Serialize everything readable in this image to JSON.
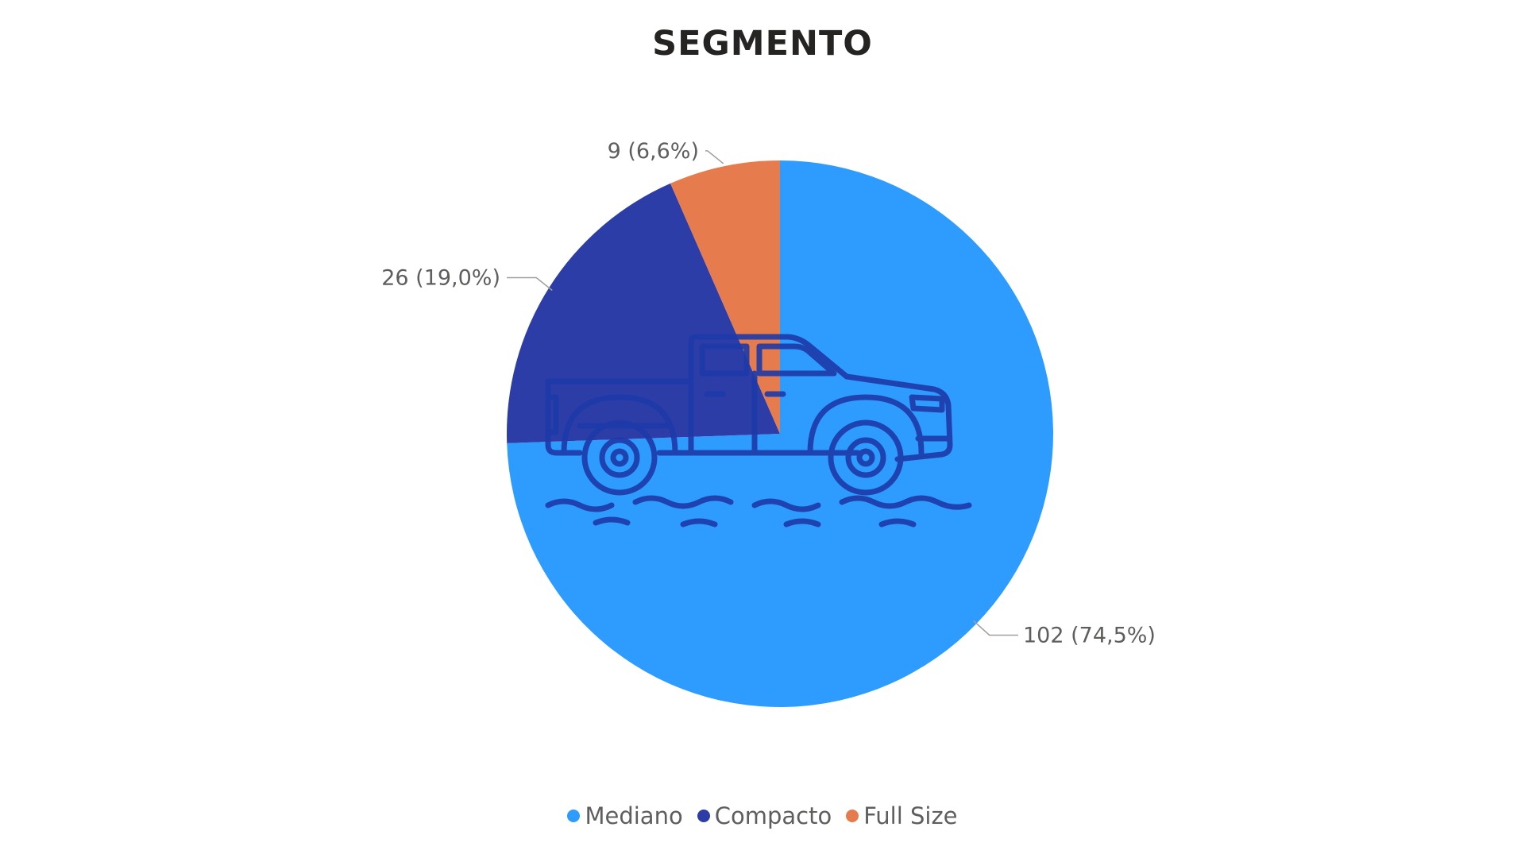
{
  "chart_data": {
    "type": "pie",
    "title": "SEGMENTO",
    "categories": [
      "Mediano",
      "Compacto",
      "Full Size"
    ],
    "values": [
      102,
      26,
      9
    ],
    "percent_labels": [
      "74,5%",
      "19,0%",
      "6,6%"
    ],
    "data_labels": [
      "102 (74,5%)",
      "26 (19,0%)",
      "9 (6,6%)"
    ],
    "colors": [
      "#2e9bff",
      "#2c3da8",
      "#e67b4e"
    ],
    "legend_position": "bottom-center",
    "center_icon": "pickup-truck-icon"
  }
}
